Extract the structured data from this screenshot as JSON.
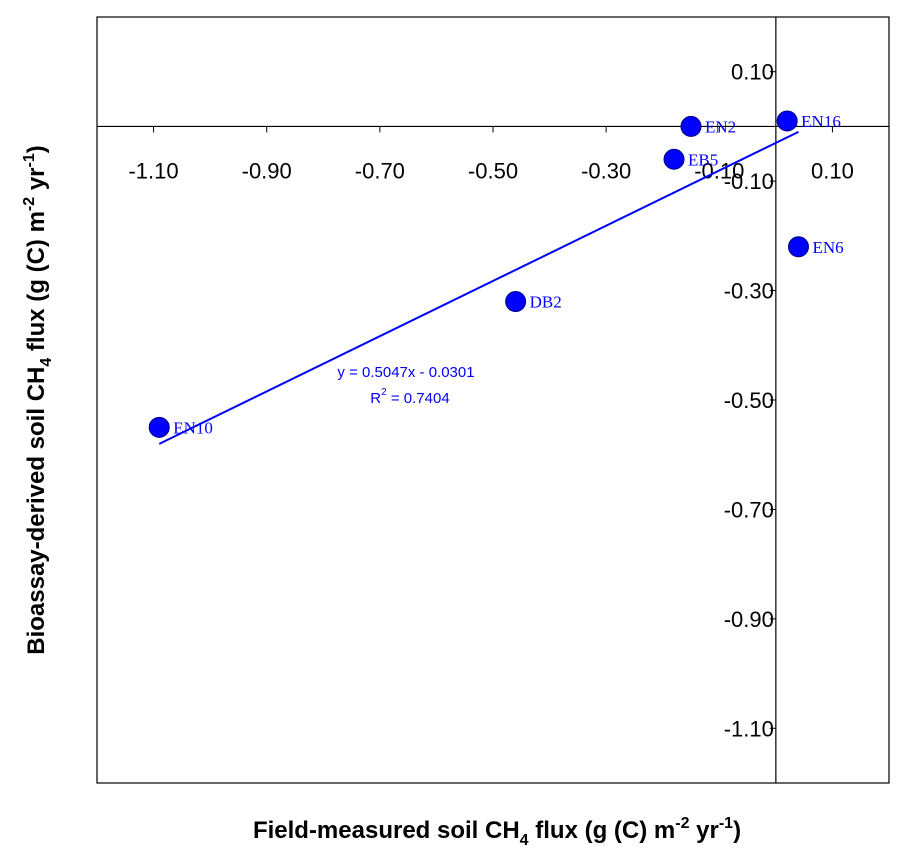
{
  "chart_data": {
    "type": "scatter",
    "title": "",
    "xlabel": {
      "text_main": "Field-measured soil CH",
      "text_sub": "4",
      "text_unit_a": " flux (g (C) m",
      "text_sup_a": "-2",
      "text_unit_b": " yr",
      "text_sup_b": "-1",
      "text_end": ")"
    },
    "ylabel": {
      "text_main": "Bioassay-derived soil CH",
      "text_sub": "4",
      "text_unit_a": " flux (g (C) m",
      "text_sup_a": "-2",
      "text_unit_b": " yr",
      "text_sup_b": "-1",
      "text_end": ")"
    },
    "xlim": [
      -1.2,
      0.2
    ],
    "ylim": [
      -1.2,
      0.2
    ],
    "x_ticks": [
      -1.1,
      -0.9,
      -0.7,
      -0.5,
      -0.3,
      -0.1,
      0.1
    ],
    "x_tick_labels": [
      "-1.10",
      "-0.90",
      "-0.70",
      "-0.50",
      "-0.30",
      "-0.10",
      "0.10"
    ],
    "y_ticks": [
      0.1,
      -0.1,
      -0.3,
      -0.5,
      -0.7,
      -0.9,
      -1.1
    ],
    "y_tick_labels": [
      "0.10",
      "-0.10",
      "-0.30",
      "-0.50",
      "-0.70",
      "-0.90",
      "-1.10"
    ],
    "grid": false,
    "point_color": "#0000ff",
    "line_color": "#0000ff",
    "points": [
      {
        "label": "EN10",
        "x": -1.09,
        "y": -0.55
      },
      {
        "label": "DB2",
        "x": -0.46,
        "y": -0.32
      },
      {
        "label": "EB5",
        "x": -0.18,
        "y": -0.06
      },
      {
        "label": "EN2",
        "x": -0.15,
        "y": 0.0
      },
      {
        "label": "EN16",
        "x": 0.02,
        "y": 0.01
      },
      {
        "label": "EN6",
        "x": 0.04,
        "y": -0.22
      }
    ],
    "trendline": {
      "slope": 0.5047,
      "intercept": -0.0301,
      "x_range": [
        -1.09,
        0.04
      ],
      "equation": "y = 0.5047x - 0.0301",
      "r2_prefix": "R",
      "r2_sup": "2",
      "r2_value": " = 0.7404"
    }
  }
}
